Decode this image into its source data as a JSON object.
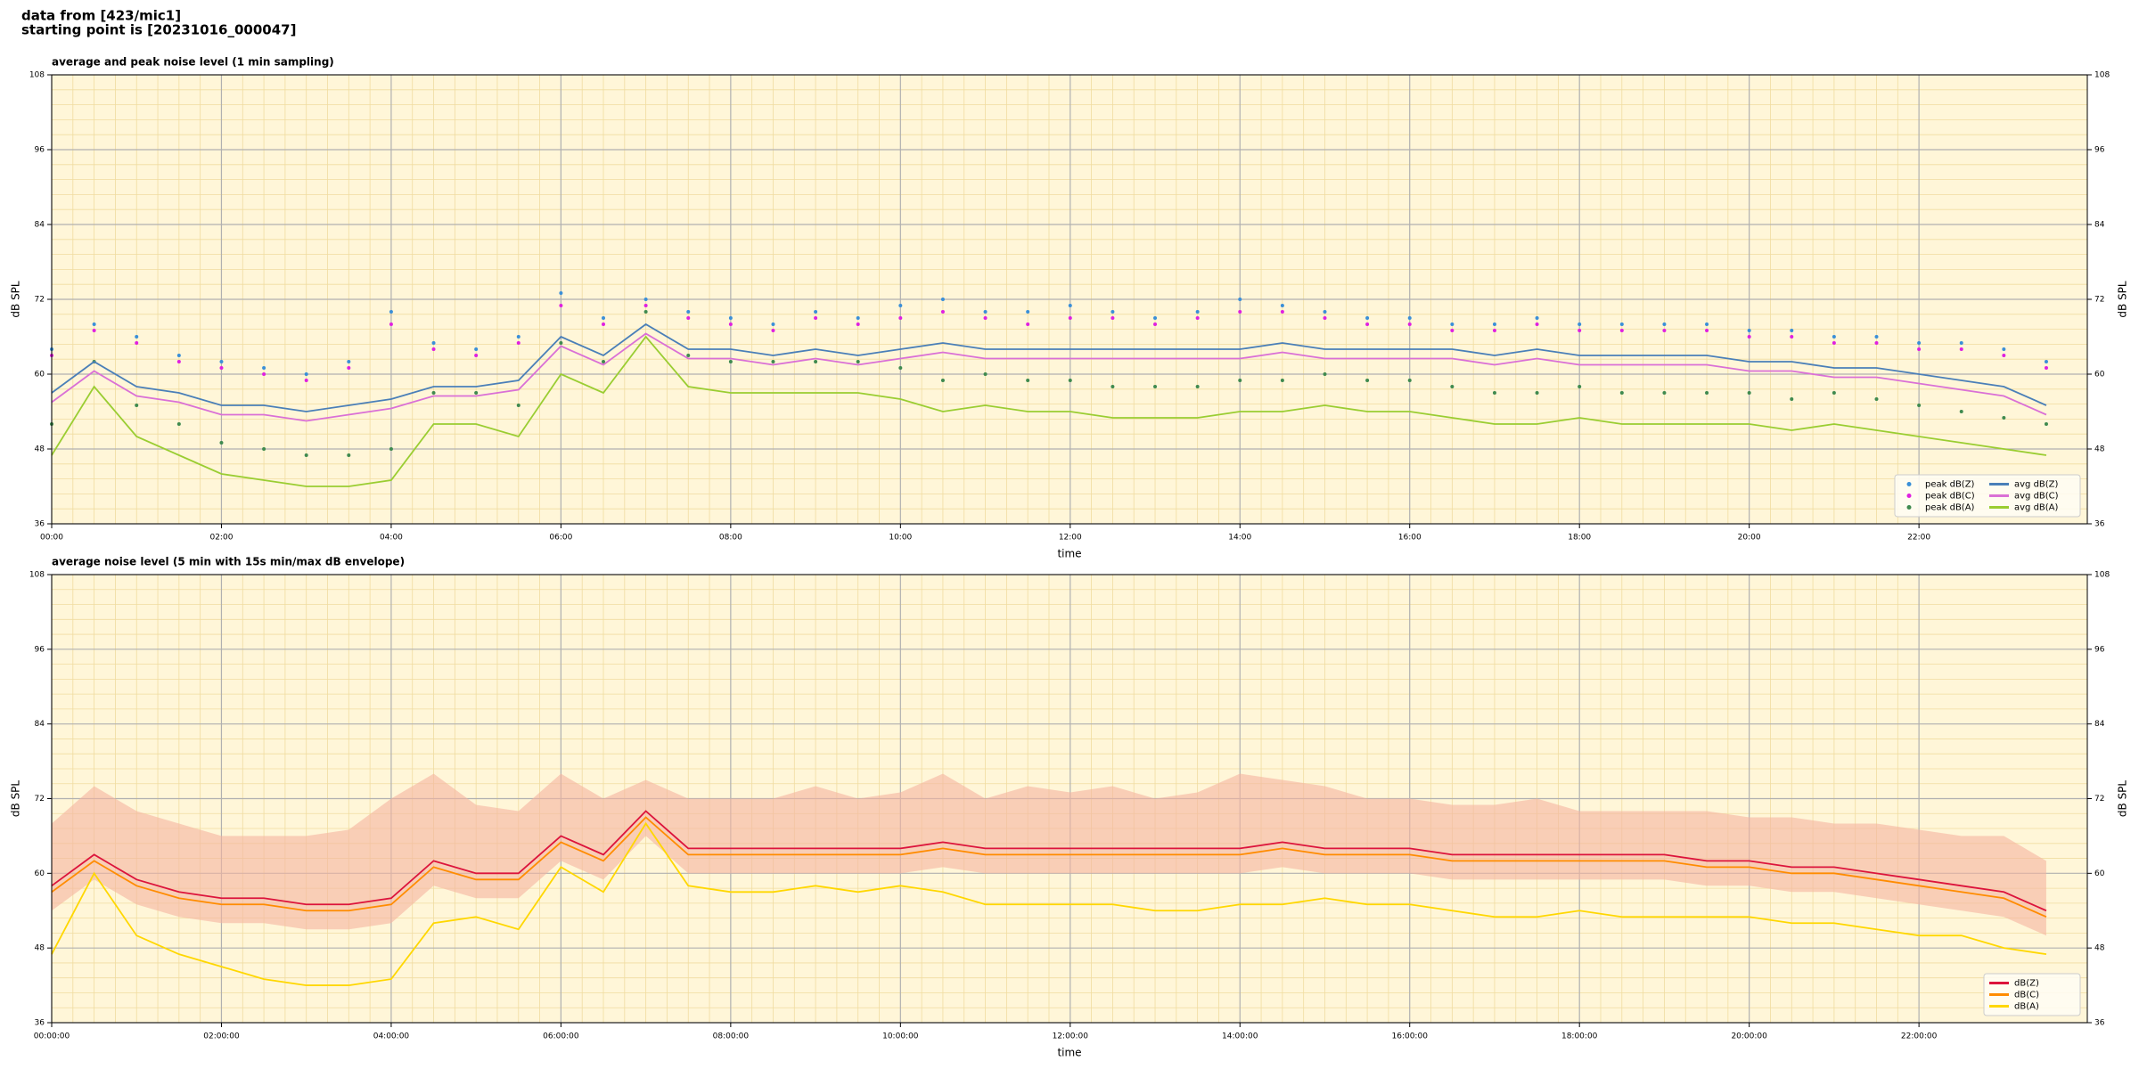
{
  "header": [
    "data from [423/mic1]",
    "starting point is [20231016_000047]"
  ],
  "chart_data": [
    {
      "type": "line",
      "title": "average and peak noise level (1 min sampling)",
      "xlabel": "time",
      "ylabel": "dB SPL",
      "x": [
        "00:00",
        "00:30",
        "01:00",
        "01:30",
        "02:00",
        "02:30",
        "03:00",
        "03:30",
        "04:00",
        "04:30",
        "05:00",
        "05:30",
        "06:00",
        "06:30",
        "07:00",
        "07:30",
        "08:00",
        "08:30",
        "09:00",
        "09:30",
        "10:00",
        "10:30",
        "11:00",
        "11:30",
        "12:00",
        "12:30",
        "13:00",
        "13:30",
        "14:00",
        "14:30",
        "15:00",
        "15:30",
        "16:00",
        "16:30",
        "17:00",
        "17:30",
        "18:00",
        "18:30",
        "19:00",
        "19:30",
        "20:00",
        "20:30",
        "21:00",
        "21:30",
        "22:00",
        "22:30",
        "23:00",
        "23:30"
      ],
      "xlim": [
        "00:00",
        "23:59"
      ],
      "xticks": [
        "00:00",
        "02:00",
        "04:00",
        "06:00",
        "08:00",
        "10:00",
        "12:00",
        "14:00",
        "16:00",
        "18:00",
        "20:00",
        "22:00"
      ],
      "ylim": [
        36,
        108
      ],
      "yticks": [
        36,
        48,
        60,
        72,
        84,
        96,
        108
      ],
      "grid": true,
      "background": "#fff6d8",
      "legend": "lower right",
      "series": [
        {
          "name": "peak dB(Z)",
          "color": "#3a8fd8",
          "style": "scatter",
          "values": [
            64,
            68,
            66,
            63,
            62,
            61,
            60,
            62,
            70,
            65,
            64,
            66,
            73,
            69,
            72,
            70,
            69,
            68,
            70,
            69,
            71,
            72,
            70,
            70,
            71,
            70,
            69,
            70,
            72,
            71,
            70,
            69,
            69,
            68,
            68,
            69,
            68,
            68,
            68,
            68,
            67,
            67,
            66,
            66,
            65,
            65,
            64,
            62
          ]
        },
        {
          "name": "peak dB(C)",
          "color": "#e020e0",
          "style": "scatter",
          "values": [
            63,
            67,
            65,
            62,
            61,
            60,
            59,
            61,
            68,
            64,
            63,
            65,
            71,
            68,
            71,
            69,
            68,
            67,
            69,
            68,
            69,
            70,
            69,
            68,
            69,
            69,
            68,
            69,
            70,
            70,
            69,
            68,
            68,
            67,
            67,
            68,
            67,
            67,
            67,
            67,
            66,
            66,
            65,
            65,
            64,
            64,
            63,
            61
          ]
        },
        {
          "name": "peak dB(A)",
          "color": "#3f8a4f",
          "style": "scatter",
          "values": [
            52,
            62,
            55,
            52,
            49,
            48,
            47,
            47,
            48,
            57,
            57,
            55,
            65,
            62,
            70,
            63,
            62,
            62,
            62,
            62,
            61,
            59,
            60,
            59,
            59,
            58,
            58,
            58,
            59,
            59,
            60,
            59,
            59,
            58,
            57,
            57,
            58,
            57,
            57,
            57,
            57,
            56,
            57,
            56,
            55,
            54,
            53,
            52
          ]
        },
        {
          "name": "avg dB(Z)",
          "color": "#4a7fb8",
          "style": "line",
          "values": [
            57,
            62,
            58,
            57,
            55,
            55,
            54,
            55,
            56,
            58,
            58,
            59,
            66,
            63,
            68,
            64,
            64,
            63,
            64,
            63,
            64,
            65,
            64,
            64,
            64,
            64,
            64,
            64,
            64,
            65,
            64,
            64,
            64,
            64,
            63,
            64,
            63,
            63,
            63,
            63,
            62,
            62,
            61,
            61,
            60,
            59,
            58,
            55
          ]
        },
        {
          "name": "avg dB(C)",
          "color": "#da70d6",
          "style": "line",
          "values": [
            55.5,
            60.5,
            56.5,
            55.5,
            53.5,
            53.5,
            52.5,
            53.5,
            54.5,
            56.5,
            56.5,
            57.5,
            64.5,
            61.5,
            66.5,
            62.5,
            62.5,
            61.5,
            62.5,
            61.5,
            62.5,
            63.5,
            62.5,
            62.5,
            62.5,
            62.5,
            62.5,
            62.5,
            62.5,
            63.5,
            62.5,
            62.5,
            62.5,
            62.5,
            61.5,
            62.5,
            61.5,
            61.5,
            61.5,
            61.5,
            60.5,
            60.5,
            59.5,
            59.5,
            58.5,
            57.5,
            56.5,
            53.5
          ]
        },
        {
          "name": "avg dB(A)",
          "color": "#9acd32",
          "style": "line",
          "values": [
            47,
            58,
            50,
            47,
            44,
            43,
            42,
            42,
            43,
            52,
            52,
            50,
            60,
            57,
            66,
            58,
            57,
            57,
            57,
            57,
            56,
            54,
            55,
            54,
            54,
            53,
            53,
            53,
            54,
            54,
            55,
            54,
            54,
            53,
            52,
            52,
            53,
            52,
            52,
            52,
            52,
            51,
            52,
            51,
            50,
            49,
            48,
            47
          ]
        }
      ]
    },
    {
      "type": "line",
      "title": "average noise level (5 min with 15s min/max dB envelope)",
      "xlabel": "time",
      "ylabel": "dB SPL",
      "x": [
        "00:00:00",
        "00:30:00",
        "01:00:00",
        "01:30:00",
        "02:00:00",
        "02:30:00",
        "03:00:00",
        "03:30:00",
        "04:00:00",
        "04:30:00",
        "05:00:00",
        "05:30:00",
        "06:00:00",
        "06:30:00",
        "07:00:00",
        "07:30:00",
        "08:00:00",
        "08:30:00",
        "09:00:00",
        "09:30:00",
        "10:00:00",
        "10:30:00",
        "11:00:00",
        "11:30:00",
        "12:00:00",
        "12:30:00",
        "13:00:00",
        "13:30:00",
        "14:00:00",
        "14:30:00",
        "15:00:00",
        "15:30:00",
        "16:00:00",
        "16:30:00",
        "17:00:00",
        "17:30:00",
        "18:00:00",
        "18:30:00",
        "19:00:00",
        "19:30:00",
        "20:00:00",
        "20:30:00",
        "21:00:00",
        "21:30:00",
        "22:00:00",
        "22:30:00",
        "23:00:00",
        "23:30:00"
      ],
      "xlim": [
        "00:00:00",
        "23:59:00"
      ],
      "xticks": [
        "00:00:00",
        "02:00:00",
        "04:00:00",
        "06:00:00",
        "08:00:00",
        "10:00:00",
        "12:00:00",
        "14:00:00",
        "16:00:00",
        "18:00:00",
        "20:00:00",
        "22:00:00"
      ],
      "ylim": [
        36,
        108
      ],
      "yticks": [
        36,
        48,
        60,
        72,
        84,
        96,
        108
      ],
      "grid": true,
      "background": "#fff6d8",
      "legend": "lower right",
      "envelope": {
        "color": "#f5b4a0",
        "min": [
          54,
          59,
          55,
          53,
          52,
          52,
          51,
          51,
          52,
          58,
          56,
          56,
          62,
          59,
          66,
          60,
          60,
          60,
          60,
          60,
          60,
          61,
          60,
          60,
          60,
          60,
          60,
          60,
          60,
          61,
          60,
          60,
          60,
          59,
          59,
          59,
          59,
          59,
          59,
          58,
          58,
          57,
          57,
          56,
          55,
          54,
          53,
          50
        ],
        "max": [
          68,
          74,
          70,
          68,
          66,
          66,
          66,
          67,
          72,
          76,
          71,
          70,
          76,
          72,
          75,
          72,
          72,
          72,
          74,
          72,
          73,
          76,
          72,
          74,
          73,
          74,
          72,
          73,
          76,
          75,
          74,
          72,
          72,
          71,
          71,
          72,
          70,
          70,
          70,
          70,
          69,
          69,
          68,
          68,
          67,
          66,
          66,
          62
        ]
      },
      "series": [
        {
          "name": "dB(Z)",
          "color": "#dc143c",
          "style": "line",
          "values": [
            58,
            63,
            59,
            57,
            56,
            56,
            55,
            55,
            56,
            62,
            60,
            60,
            66,
            63,
            70,
            64,
            64,
            64,
            64,
            64,
            64,
            65,
            64,
            64,
            64,
            64,
            64,
            64,
            64,
            65,
            64,
            64,
            64,
            63,
            63,
            63,
            63,
            63,
            63,
            62,
            62,
            61,
            61,
            60,
            59,
            58,
            57,
            54
          ]
        },
        {
          "name": "dB(C)",
          "color": "#ff8c00",
          "style": "line",
          "values": [
            57,
            62,
            58,
            56,
            55,
            55,
            54,
            54,
            55,
            61,
            59,
            59,
            65,
            62,
            69,
            63,
            63,
            63,
            63,
            63,
            63,
            64,
            63,
            63,
            63,
            63,
            63,
            63,
            63,
            64,
            63,
            63,
            63,
            62,
            62,
            62,
            62,
            62,
            62,
            61,
            61,
            60,
            60,
            59,
            58,
            57,
            56,
            53
          ]
        },
        {
          "name": "dB(A)",
          "color": "#ffd700",
          "style": "line",
          "values": [
            47,
            60,
            50,
            47,
            45,
            43,
            42,
            42,
            43,
            52,
            53,
            51,
            61,
            57,
            68,
            58,
            57,
            57,
            58,
            57,
            58,
            57,
            55,
            55,
            55,
            55,
            54,
            54,
            55,
            55,
            56,
            55,
            55,
            54,
            53,
            53,
            54,
            53,
            53,
            53,
            53,
            52,
            52,
            51,
            50,
            50,
            48,
            47
          ]
        }
      ]
    }
  ]
}
